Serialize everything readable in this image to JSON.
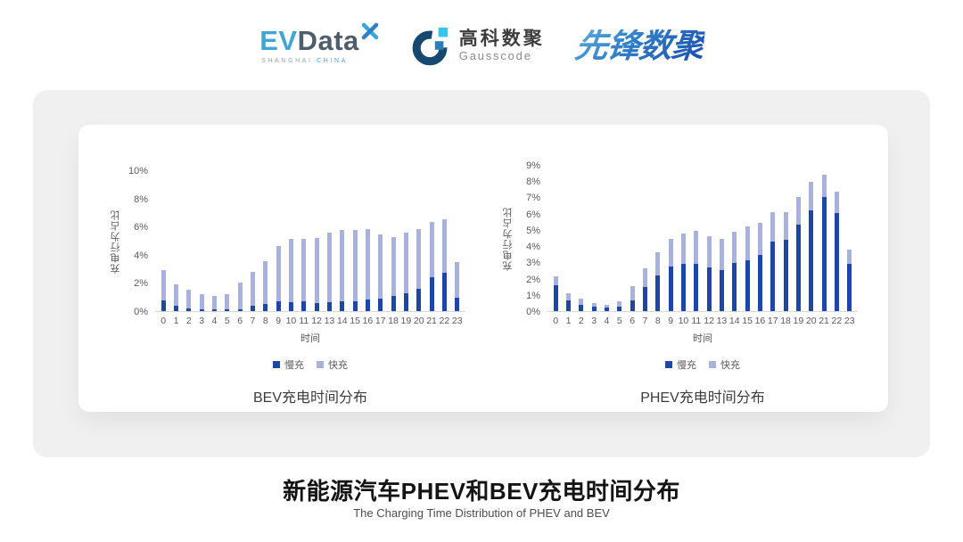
{
  "header": {
    "evdata": {
      "ev": "EV",
      "data": "Data",
      "sub_left": "SHANGHAI",
      "sub_right": "CHINA"
    },
    "gausscode": {
      "cn": "高科数聚",
      "en": "Gausscode"
    },
    "xianfeng": {
      "text": "先锋数聚"
    }
  },
  "colors": {
    "slow": "#1e46a8",
    "fast": "#a9b2dc",
    "axis_text": "#595959",
    "baseline": "#d8d8d8",
    "panel_gray": "#f0f0f1"
  },
  "chart_data": [
    {
      "type": "bar",
      "stacked": true,
      "title": "BEV充电时间分布",
      "xlabel": "时间",
      "ylabel": "充电行为占比",
      "ylim": [
        0,
        10
      ],
      "ytick_step": 2,
      "ytick_suffix": "%",
      "legend_position": "bottom",
      "grid": false,
      "categories": [
        "0",
        "1",
        "2",
        "3",
        "4",
        "5",
        "6",
        "7",
        "8",
        "9",
        "10",
        "11",
        "12",
        "13",
        "14",
        "15",
        "16",
        "17",
        "18",
        "19",
        "20",
        "21",
        "22",
        "23"
      ],
      "series": [
        {
          "name": "慢充",
          "values": [
            0.75,
            0.35,
            0.2,
            0.1,
            0.1,
            0.1,
            0.15,
            0.35,
            0.5,
            0.7,
            0.65,
            0.7,
            0.6,
            0.65,
            0.7,
            0.7,
            0.8,
            0.9,
            1.05,
            1.25,
            1.6,
            2.4,
            2.7,
            0.95
          ]
        },
        {
          "name": "快充",
          "values": [
            2.15,
            1.55,
            1.3,
            1.1,
            1.0,
            1.1,
            1.85,
            2.45,
            3.05,
            3.9,
            4.5,
            4.45,
            4.6,
            4.95,
            5.05,
            5.05,
            5.0,
            4.55,
            4.2,
            4.3,
            4.25,
            3.9,
            3.8,
            2.55
          ]
        }
      ]
    },
    {
      "type": "bar",
      "stacked": true,
      "title": "PHEV充电时间分布",
      "xlabel": "时间",
      "ylabel": "充电行为占比",
      "ylim": [
        0,
        9
      ],
      "ytick_step": 1,
      "ytick_suffix": "%",
      "legend_position": "bottom",
      "grid": false,
      "categories": [
        "0",
        "1",
        "2",
        "3",
        "4",
        "5",
        "6",
        "7",
        "8",
        "9",
        "10",
        "11",
        "12",
        "13",
        "14",
        "15",
        "16",
        "17",
        "18",
        "19",
        "20",
        "21",
        "22",
        "23"
      ],
      "series": [
        {
          "name": "慢充",
          "values": [
            1.6,
            0.65,
            0.4,
            0.25,
            0.2,
            0.3,
            0.65,
            1.5,
            2.2,
            2.75,
            2.9,
            2.9,
            2.7,
            2.55,
            2.95,
            3.15,
            3.45,
            4.3,
            4.4,
            5.3,
            6.2,
            7.0,
            6.05,
            2.9
          ]
        },
        {
          "name": "快充",
          "values": [
            0.55,
            0.45,
            0.35,
            0.25,
            0.2,
            0.3,
            0.9,
            1.15,
            1.4,
            1.7,
            1.85,
            2.05,
            1.9,
            1.9,
            1.95,
            2.05,
            2.0,
            1.8,
            1.7,
            1.7,
            1.75,
            1.4,
            1.3,
            0.9
          ]
        }
      ]
    }
  ],
  "footer": {
    "title": "新能源汽车PHEV和BEV充电时间分布",
    "subtitle": "The Charging Time Distribution of PHEV and BEV"
  }
}
